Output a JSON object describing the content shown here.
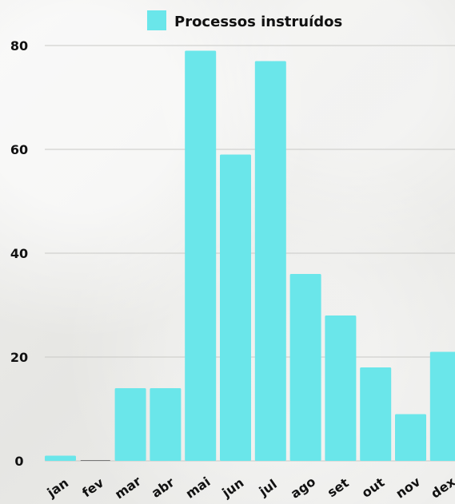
{
  "chart_data": {
    "type": "bar",
    "categories": [
      "jan",
      "fev",
      "mar",
      "abr",
      "mai",
      "jun",
      "jul",
      "ago",
      "set",
      "out",
      "nov",
      "dex"
    ],
    "series": [
      {
        "name": "Processos instruídos",
        "values": [
          1,
          0,
          14,
          14,
          79,
          59,
          77,
          36,
          28,
          18,
          9,
          21
        ]
      }
    ],
    "title": "",
    "xlabel": "",
    "ylabel": "",
    "ylim": [
      0,
      80
    ],
    "yticks": [
      0,
      20,
      40,
      60,
      80
    ],
    "grid": true,
    "legend_position": "top-center",
    "bar_color": "#6ae6ea",
    "text_color": "#111111",
    "grid_color": "#c9c9c6"
  }
}
